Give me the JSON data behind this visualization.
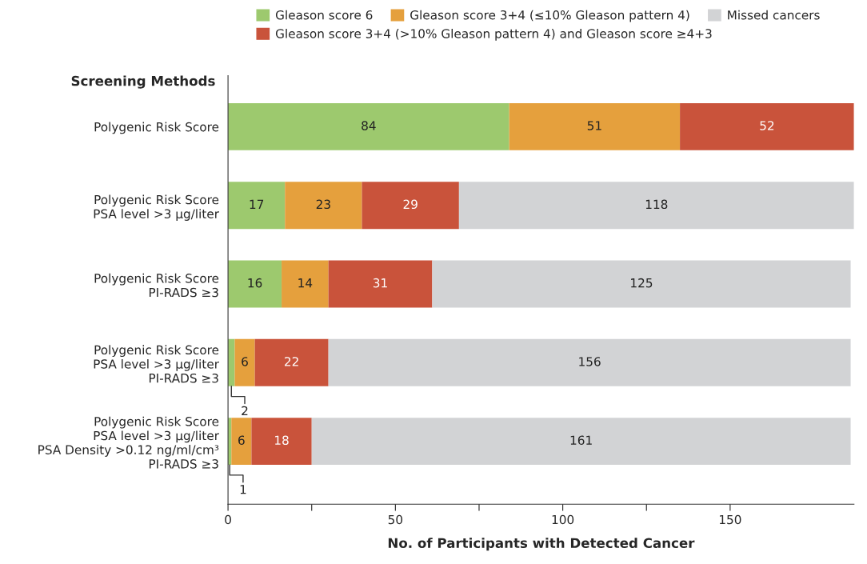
{
  "chart_data": {
    "type": "bar",
    "orientation": "horizontal",
    "stacked": true,
    "ylabel": "Screening Methods",
    "xlabel": "No. of Participants with Detected Cancer",
    "categories": [
      "Polygenic Risk Score",
      "Polygenic Risk Score\nPSA level >3 μg/liter",
      "Polygenic Risk Score\nPI-RADS ≥3",
      "Polygenic Risk Score\nPSA level >3 μg/liter\nPI-RADS ≥3",
      "Polygenic Risk Score\nPSA level >3 μg/liter\nPSA Density >0.12 ng/ml/cm³\nPI-RADS ≥3"
    ],
    "series": [
      {
        "name": "Gleason score 6",
        "color": "#9dc96e",
        "values": [
          84,
          17,
          16,
          2,
          1
        ]
      },
      {
        "name": "Gleason score 3+4 (≤10% Gleason pattern 4)",
        "color": "#e5a03d",
        "values": [
          51,
          23,
          14,
          6,
          6
        ]
      },
      {
        "name": "Gleason score 3+4 (>10% Gleason pattern 4) and Gleason score ≥4+3",
        "color": "#c9533b",
        "values": [
          52,
          29,
          31,
          22,
          18
        ]
      },
      {
        "name": "Missed cancers",
        "color": "#d2d3d5",
        "values": [
          0,
          118,
          125,
          156,
          161
        ],
        "value_labels": [
          null,
          "118",
          "125",
          "156",
          "161"
        ]
      }
    ],
    "xlim": [
      0,
      187
    ],
    "xticks": [
      0,
      {
        "value": 25,
        "label": null
      },
      50,
      {
        "value": 75,
        "label": null
      },
      100,
      {
        "value": 125,
        "label": null
      },
      150
    ],
    "legend": "top",
    "data_labels": true,
    "grid": false
  }
}
